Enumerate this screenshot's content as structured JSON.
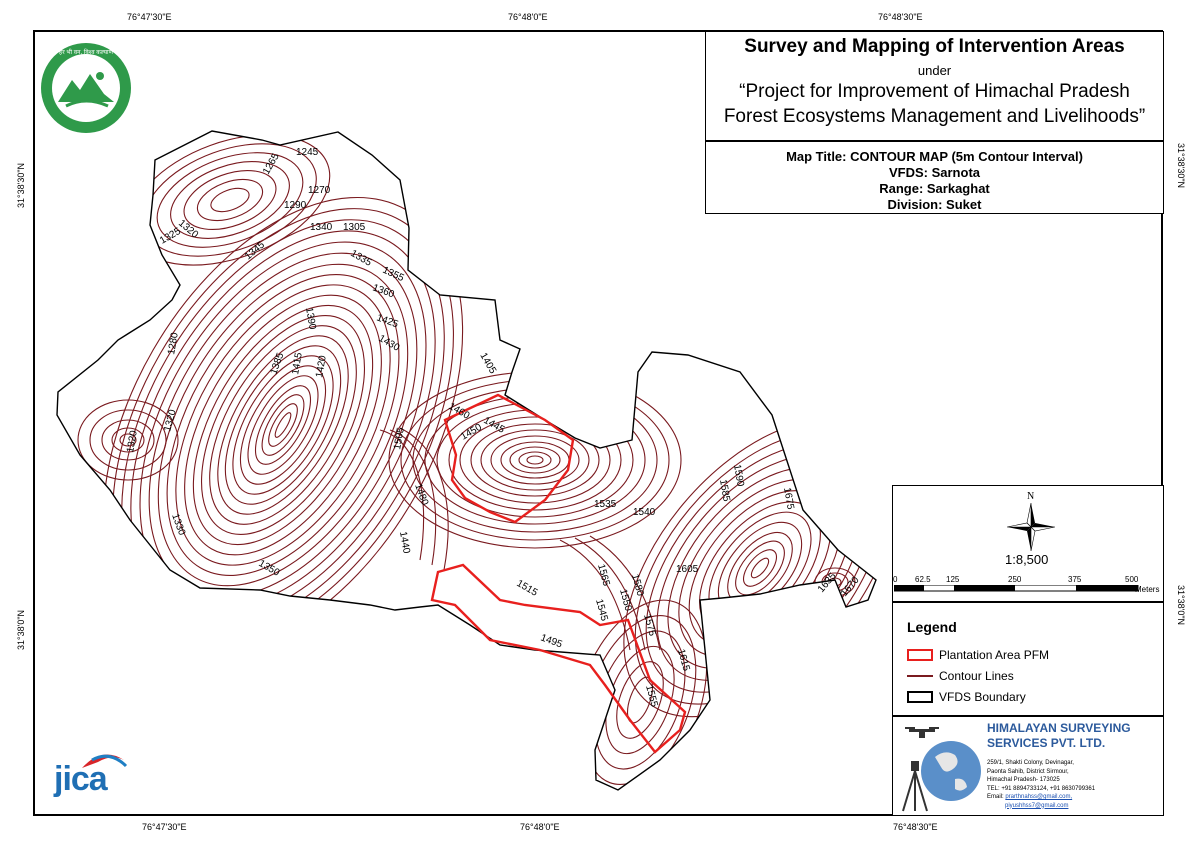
{
  "coords": {
    "top": [
      "76°47'30\"E",
      "76°48'0\"E",
      "76°48'30\"E"
    ],
    "bottom": [
      "76°47'30\"E",
      "76°48'0\"E",
      "76°48'30\"E"
    ],
    "left": [
      "31°38'30\"N",
      "31°38'0\"N"
    ],
    "right": [
      "31°38'30\"N",
      "31°38'0\"N"
    ]
  },
  "title": {
    "line1": "Survey and Mapping of Intervention Areas",
    "line2": "under",
    "line3": "“Project for Improvement of Himachal Pradesh",
    "line4": "Forest Ecosystems Management and Livelihoods”"
  },
  "info": {
    "map_title": "Map Title: CONTOUR MAP (5m Contour Interval)",
    "vfds": "VFDS: Sarnota",
    "range": "Range: Sarkaghat",
    "division": "Division: Suket"
  },
  "north": {
    "label": "N",
    "scale": "1:8,500",
    "ticks": [
      "0",
      "62.5",
      "125",
      "250",
      "375",
      "500"
    ],
    "unit": "Meters"
  },
  "legend": {
    "title": "Legend",
    "items": [
      {
        "label": "Plantation Area PFM",
        "color": "#e8201e"
      },
      {
        "label": "Contour Lines",
        "color": "#7a1a1f"
      },
      {
        "label": "VFDS Boundary",
        "color": "#000000"
      }
    ]
  },
  "company": {
    "name1": "HIMALAYAN SURVEYING",
    "name2": "SERVICES PVT. LTD.",
    "addr1": "259/1, Shakti Colony, Devinagar,",
    "addr2": "Paonta Sahib, District Sirmour,",
    "addr3": "Himachal Pradesh- 173025",
    "tel": "TEL: +91 8894733124, +91 8630799361",
    "email_label": "Email:",
    "email1": "prarthnahss@gmail.com,",
    "email2": "piyushhss7@gmail.com"
  },
  "logos": {
    "jica": "JICA",
    "forest_seal": "हर भी वन, विश्व कल्याण"
  },
  "contour_labels": [
    "1245",
    "1265",
    "1270",
    "1290",
    "1320",
    "1325",
    "1340",
    "1305",
    "1335",
    "1355",
    "1345",
    "1360",
    "1390",
    "1425",
    "1430",
    "1405",
    "1280",
    "1385",
    "1415",
    "1420",
    "1460",
    "1445",
    "1450",
    "1505",
    "1320",
    "1320",
    "1480",
    "1330",
    "1440",
    "1350",
    "1535",
    "1540",
    "1590",
    "1585",
    "1675",
    "1605",
    "1635",
    "1670",
    "1515",
    "1565",
    "1580",
    "1550",
    "1545",
    "1575",
    "1495",
    "1615",
    "1555"
  ]
}
